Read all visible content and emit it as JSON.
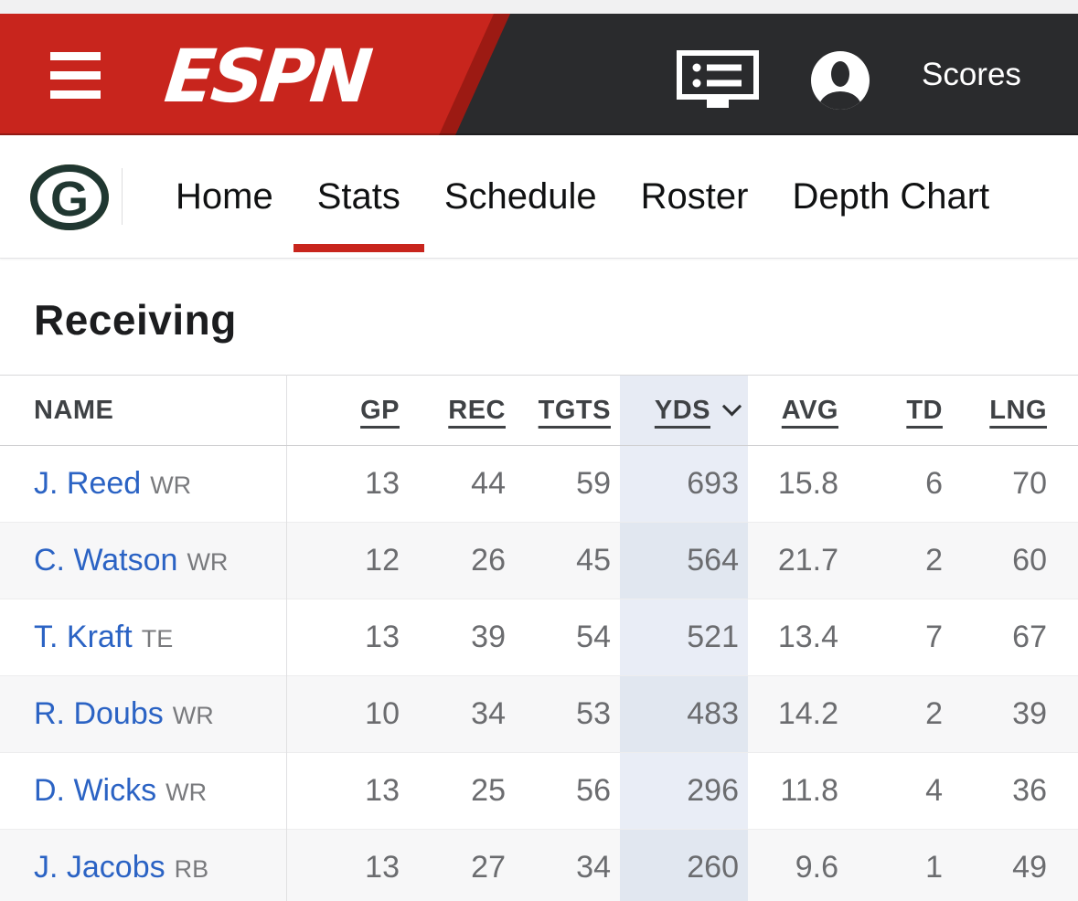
{
  "top_bar": {
    "logo_text": "ESPN",
    "scores_label": "Scores",
    "icons": {
      "menu": "menu-icon",
      "scoreboard": "scoreboard-list-icon",
      "profile": "profile-icon"
    },
    "colors": {
      "red": "#c8251d",
      "dark_red": "#9c1a13",
      "bar_bg": "#2a2b2d"
    }
  },
  "team_nav": {
    "logo_letter": "G",
    "logo_colors": {
      "green": "#203731",
      "gold": "#c9b037"
    },
    "items": [
      {
        "label": "Home",
        "active": false
      },
      {
        "label": "Stats",
        "active": true
      },
      {
        "label": "Schedule",
        "active": false
      },
      {
        "label": "Roster",
        "active": false
      },
      {
        "label": "Depth Chart",
        "active": false
      }
    ],
    "active_color": "#c8251d"
  },
  "section": {
    "title": "Receiving"
  },
  "table": {
    "sorted_column": "yds",
    "sort_direction": "desc",
    "highlight_color": "#e9edf6",
    "link_color": "#2b63c4",
    "columns": [
      {
        "key": "name",
        "label": "NAME",
        "sortable": false
      },
      {
        "key": "gp",
        "label": "GP",
        "sortable": true
      },
      {
        "key": "rec",
        "label": "REC",
        "sortable": true
      },
      {
        "key": "tgts",
        "label": "TGTS",
        "sortable": true
      },
      {
        "key": "yds",
        "label": "YDS",
        "sortable": true,
        "sorted": true
      },
      {
        "key": "avg",
        "label": "AVG",
        "sortable": true
      },
      {
        "key": "td",
        "label": "TD",
        "sortable": true
      },
      {
        "key": "lng",
        "label": "LNG",
        "sortable": true
      }
    ],
    "rows": [
      {
        "name": "J. Reed",
        "position": "WR",
        "gp": "13",
        "rec": "44",
        "tgts": "59",
        "yds": "693",
        "avg": "15.8",
        "td": "6",
        "lng": "70"
      },
      {
        "name": "C. Watson",
        "position": "WR",
        "gp": "12",
        "rec": "26",
        "tgts": "45",
        "yds": "564",
        "avg": "21.7",
        "td": "2",
        "lng": "60"
      },
      {
        "name": "T. Kraft",
        "position": "TE",
        "gp": "13",
        "rec": "39",
        "tgts": "54",
        "yds": "521",
        "avg": "13.4",
        "td": "7",
        "lng": "67"
      },
      {
        "name": "R. Doubs",
        "position": "WR",
        "gp": "10",
        "rec": "34",
        "tgts": "53",
        "yds": "483",
        "avg": "14.2",
        "td": "2",
        "lng": "39"
      },
      {
        "name": "D. Wicks",
        "position": "WR",
        "gp": "13",
        "rec": "25",
        "tgts": "56",
        "yds": "296",
        "avg": "11.8",
        "td": "4",
        "lng": "36"
      },
      {
        "name": "J. Jacobs",
        "position": "RB",
        "gp": "13",
        "rec": "27",
        "tgts": "34",
        "yds": "260",
        "avg": "9.6",
        "td": "1",
        "lng": "49"
      }
    ]
  }
}
